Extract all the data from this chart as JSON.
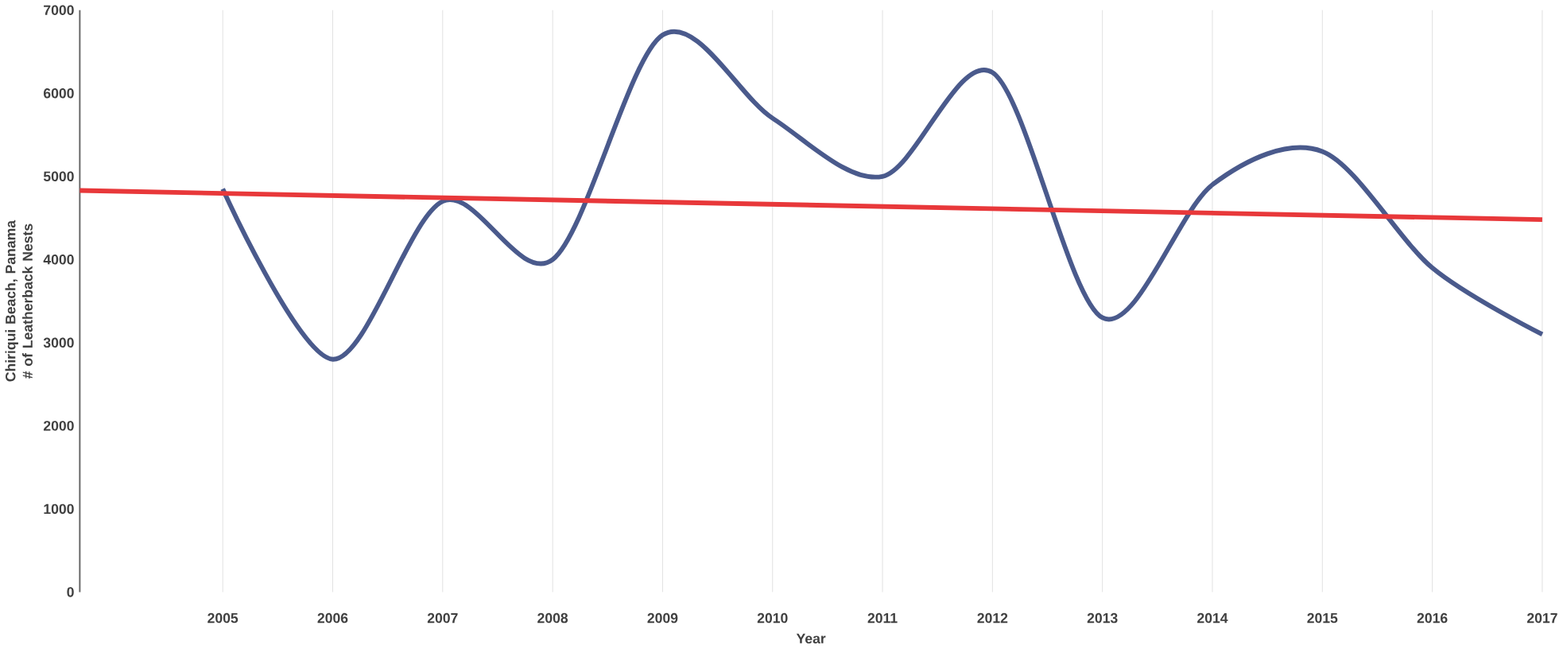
{
  "chart_data": {
    "type": "line",
    "xlabel": "Year",
    "ylabel": "Chiriqui Beach, Panama # of Leatherback Nests",
    "xlim": [
      2003.7,
      2017
    ],
    "xticks": [
      2005,
      2006,
      2007,
      2008,
      2009,
      2010,
      2011,
      2012,
      2013,
      2014,
      2015,
      2016,
      2017
    ],
    "ylim": [
      0,
      7000
    ],
    "yticks": [
      0,
      1000,
      2000,
      3000,
      4000,
      5000,
      6000,
      7000
    ],
    "grid": "x",
    "series": [
      {
        "color": "#4a5a8c",
        "x": [
          2005,
          2006,
          2007,
          2008,
          2009,
          2010,
          2011,
          2012,
          2013,
          2014,
          2015,
          2016,
          2017
        ],
        "values": [
          4850,
          2800,
          4700,
          4000,
          6700,
          5700,
          5000,
          6250,
          3300,
          4900,
          5300,
          3900,
          3100
        ]
      },
      {
        "color": "#e8383a",
        "x": [
          2003.7,
          2017
        ],
        "values": [
          4830,
          4480
        ]
      }
    ]
  }
}
